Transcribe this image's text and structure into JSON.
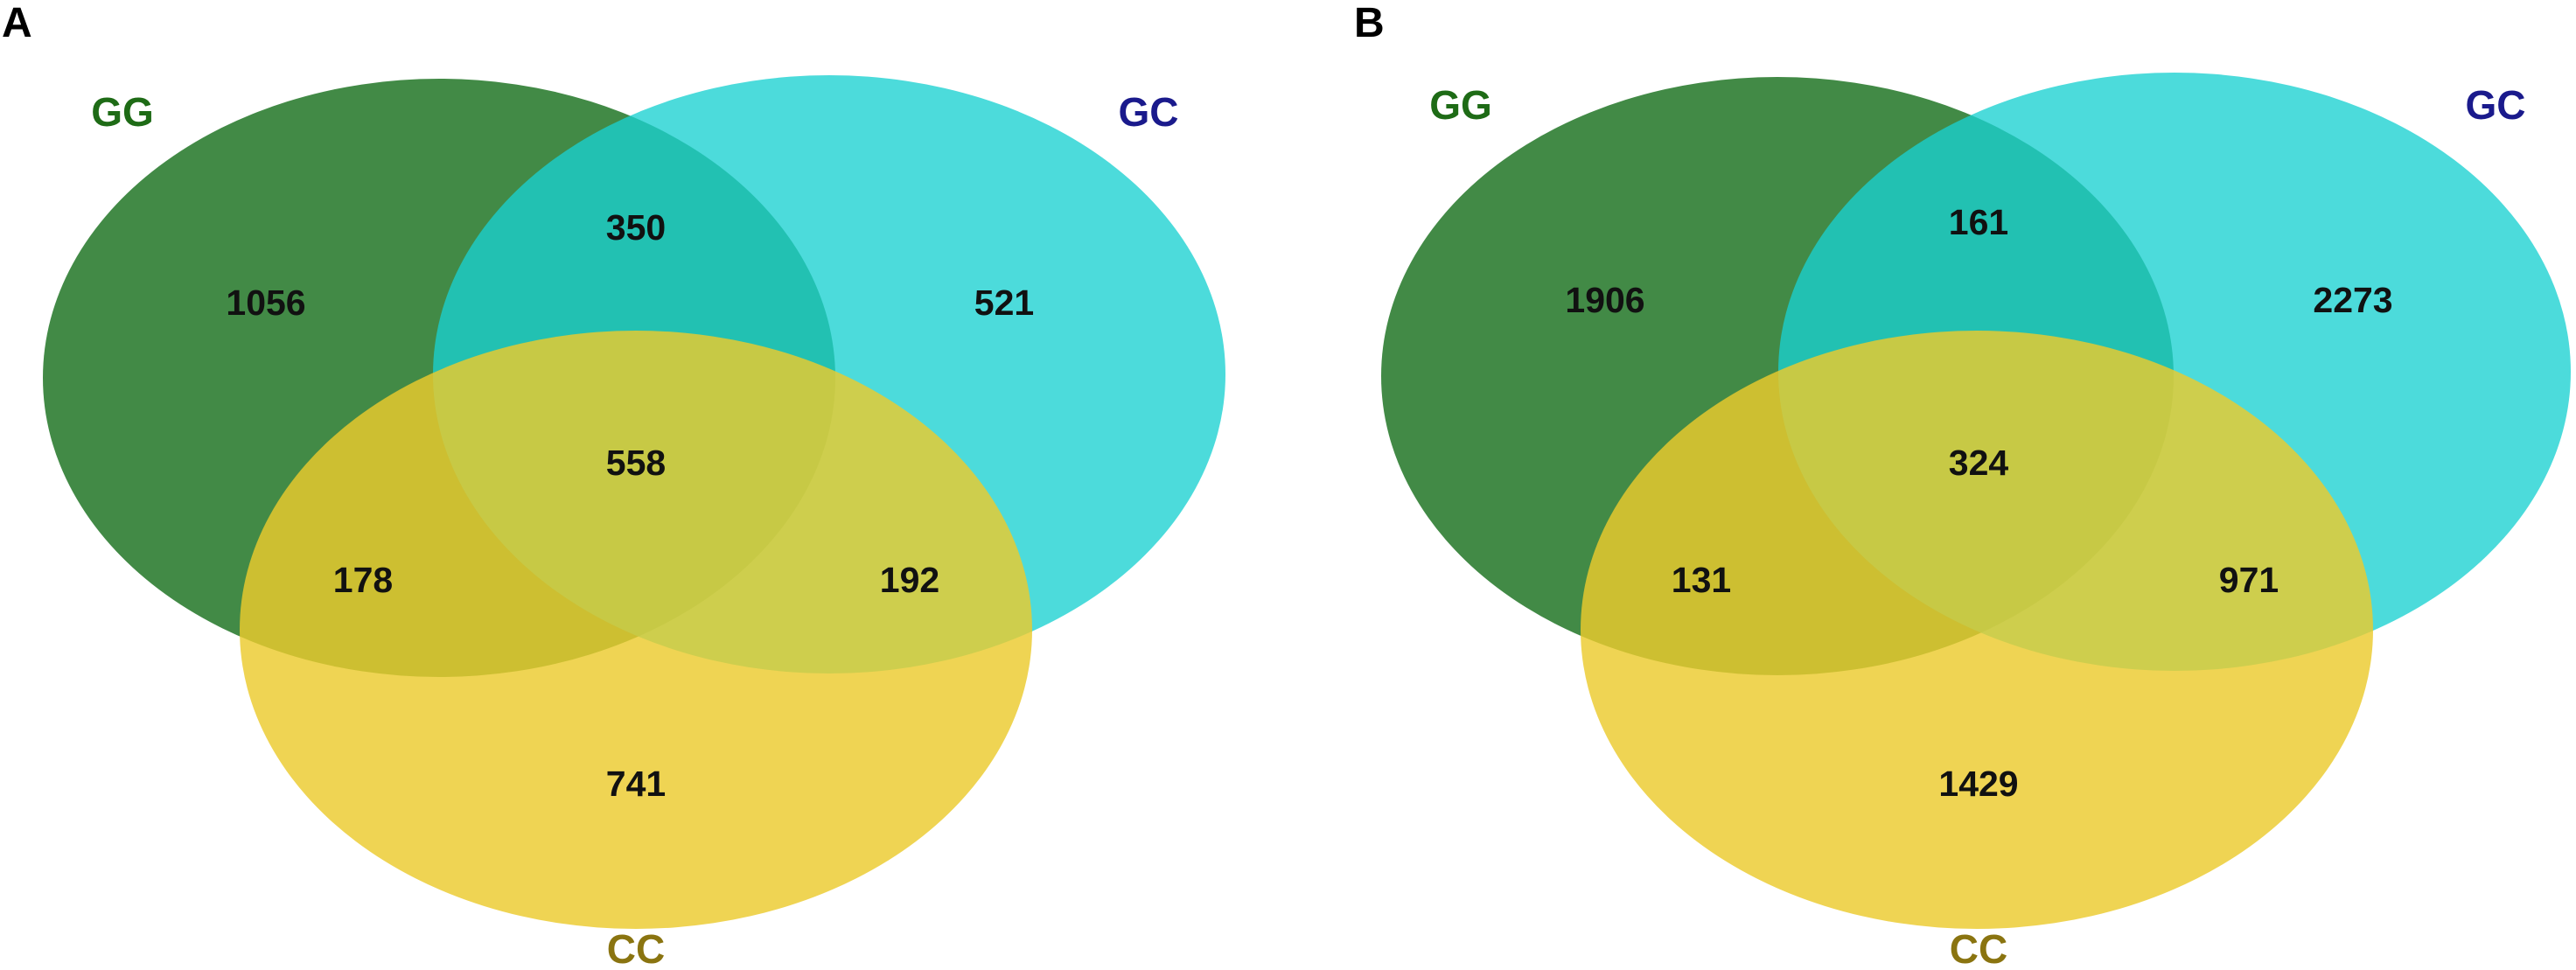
{
  "colors": {
    "GG": "#2e7d32",
    "GC": "#1ad1d1",
    "CC": "#ebcb2d",
    "label_GG": "#1e6b16",
    "label_GC": "#1a1a8c",
    "label_CC": "#8a7410"
  },
  "panels": [
    {
      "letter": "A",
      "sets": {
        "GG": "GG",
        "GC": "GC",
        "CC": "CC"
      },
      "counts": {
        "gg_only": "1056",
        "gc_only": "521",
        "cc_only": "741",
        "gg_gc": "350",
        "gg_cc": "178",
        "gc_cc": "192",
        "all": "558"
      }
    },
    {
      "letter": "B",
      "sets": {
        "GG": "GG",
        "GC": "GC",
        "CC": "CC"
      },
      "counts": {
        "gg_only": "1906",
        "gc_only": "2273",
        "cc_only": "1429",
        "gg_gc": "161",
        "gg_cc": "131",
        "gc_cc": "971",
        "all": "324"
      }
    }
  ]
}
